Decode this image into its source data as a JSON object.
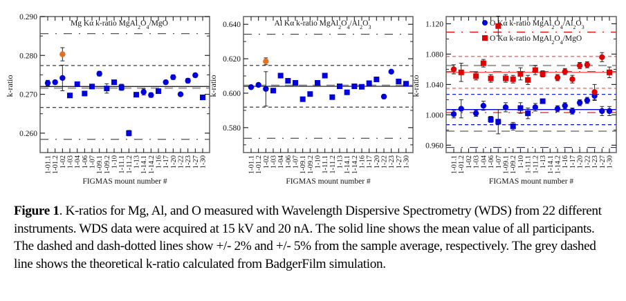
{
  "categories": [
    "1-01.1",
    "1-01.2",
    "1-02",
    "1-03",
    "1-04",
    "1-06",
    "1-07",
    "1-09.1",
    "1-09.2",
    "1-10",
    "1-11.1",
    "1-11.2",
    "1-13",
    "1-14.1",
    "1-14.2",
    "1-16",
    "1-17",
    "1-20",
    "1-22",
    "1-23",
    "1-27",
    "1-30"
  ],
  "colors": {
    "blue": "#0000dd",
    "orange": "#e8701a",
    "red": "#e00000",
    "lightred": "#ff7070",
    "grey": "#999999",
    "axis": "#555555"
  },
  "chart_data": [
    {
      "type": "scatter",
      "title": "Mg Kα k-ratio MgAl",
      "title_sub1": "2",
      "title_mid": "O",
      "title_sub2": "4",
      "title_end": "/MgO",
      "xlabel": "FIGMAS mount number #",
      "ylabel": "k-ratio",
      "ylim": [
        0.255,
        0.29
      ],
      "yticks": [
        "0.290",
        "0.280",
        "0.270",
        "0.260"
      ],
      "ytick_values": [
        0.29,
        0.28,
        0.27,
        0.26
      ],
      "reference_lines": {
        "mean": 0.272,
        "theoretical": 0.2716,
        "plus2": 0.2774,
        "minus2": 0.2666,
        "plus5": 0.2856,
        "minus5": 0.2584
      },
      "series": [
        {
          "name": "Mg Kα k-ratio MgAl2O4/MgO",
          "color": "blue",
          "values": [
            0.2729,
            0.2731,
            0.2742,
            0.2697,
            0.2726,
            0.2702,
            0.272,
            0.2753,
            0.2715,
            0.2731,
            0.2718,
            0.26,
            0.2699,
            0.2706,
            0.2698,
            0.2708,
            0.2731,
            0.2744,
            0.27,
            0.2735,
            0.2749,
            0.2692
          ],
          "errors": [
            0.0007,
            0.0004,
            0.0033,
            0.0005,
            0.0004,
            0.0006,
            0.0005,
            0.0006,
            0.0012,
            0.0003,
            0.0008,
            0.0007,
            0.0003,
            0.0008,
            0.0006,
            0.0003,
            0.0004,
            0.0006,
            0.0004,
            0.0006,
            0.0005,
            0.0006
          ],
          "markers": [
            "c",
            "c",
            "c",
            "s",
            "s",
            "s",
            "s",
            "c",
            "s",
            "s",
            "s",
            "s",
            "s",
            "c",
            "c",
            "s",
            "c",
            "c",
            "c",
            "c",
            "c",
            "s"
          ]
        },
        {
          "name": "outlier",
          "color": "orange",
          "values": [
            null,
            null,
            0.2803,
            null,
            null,
            null,
            null,
            null,
            null,
            null,
            null,
            null,
            null,
            null,
            null,
            null,
            null,
            null,
            null,
            null,
            null,
            null
          ],
          "errors": [
            null,
            null,
            0.0017,
            null,
            null,
            null,
            null,
            null,
            null,
            null,
            null,
            null,
            null,
            null,
            null,
            null,
            null,
            null,
            null,
            null,
            null,
            null
          ],
          "markers": [
            "c",
            "c",
            "c",
            "c",
            "c",
            "c",
            "c",
            "c",
            "c",
            "c",
            "c",
            "c",
            "c",
            "c",
            "c",
            "c",
            "c",
            "c",
            "c",
            "c",
            "c",
            "c"
          ]
        }
      ]
    },
    {
      "type": "scatter",
      "title": "Al Kα k-ratio MgAl",
      "title_sub1": "2",
      "title_mid": "O",
      "title_sub2": "4",
      "title_end": "/Al",
      "title_sub3": "2",
      "title_end2": "O",
      "title_sub4": "3",
      "xlabel": "FIGMAS mount number #",
      "ylabel": "k-ratio",
      "ylim": [
        0.5655,
        0.6445
      ],
      "yticks": [
        "0.640",
        "0.620",
        "0.600",
        "0.580"
      ],
      "ytick_values": [
        0.64,
        0.62,
        0.6,
        0.58
      ],
      "reference_lines": {
        "mean": 0.604,
        "theoretical": 0.6046,
        "plus2": 0.6161,
        "minus2": 0.5919,
        "plus5": 0.6342,
        "minus5": 0.5738
      },
      "series": [
        {
          "name": "Al Kα k-ratio MgAl2O4/Al2O3",
          "color": "blue",
          "values": [
            0.6035,
            0.6048,
            0.6025,
            0.6015,
            0.6102,
            0.6072,
            0.606,
            0.5965,
            0.5995,
            0.606,
            0.6102,
            0.5977,
            0.604,
            0.6005,
            0.604,
            0.6037,
            0.6058,
            0.608,
            0.598,
            0.6125,
            0.6068,
            0.6055
          ],
          "errors": [
            0.001,
            0.0008,
            0.01,
            0.001,
            0.0008,
            0.001,
            0.001,
            0.0007,
            0.0007,
            0.0006,
            0.0008,
            0.001,
            0.0006,
            0.0008,
            0.001,
            0.0006,
            0.001,
            0.0012,
            0.0012,
            0.0008,
            0.0012,
            0.001
          ],
          "markers": [
            "c",
            "c",
            "c",
            "s",
            "s",
            "s",
            "s",
            "s",
            "s",
            "s",
            "s",
            "s",
            "s",
            "s",
            "s",
            "s",
            "s",
            "s",
            "c",
            "c",
            "s",
            "s"
          ]
        },
        {
          "name": "outlier",
          "color": "orange",
          "values": [
            null,
            null,
            0.6185,
            null,
            null,
            null,
            null,
            null,
            null,
            null,
            null,
            null,
            null,
            null,
            null,
            null,
            null,
            null,
            null,
            null,
            null,
            null
          ],
          "errors": [
            null,
            null,
            0.002,
            null,
            null,
            null,
            null,
            null,
            null,
            null,
            null,
            null,
            null,
            null,
            null,
            null,
            null,
            null,
            null,
            null,
            null,
            null
          ],
          "markers": [
            "c",
            "c",
            "c",
            "c",
            "c",
            "c",
            "c",
            "c",
            "c",
            "c",
            "c",
            "c",
            "c",
            "c",
            "c",
            "c",
            "c",
            "c",
            "c",
            "c",
            "c",
            "c"
          ]
        }
      ]
    },
    {
      "type": "scatter",
      "xlabel": "FIGMAS mount number #",
      "ylabel": "k-ratio",
      "ylim": [
        0.9503,
        1.1295
      ],
      "yticks": [
        "1.120",
        "1.080",
        "1.040",
        "1.000",
        "0.960"
      ],
      "ytick_values": [
        1.12,
        1.08,
        1.04,
        1.0,
        0.96
      ],
      "legend": [
        {
          "text": "O Kα k-ratio MgAl",
          "sub1": "2",
          "mid": "O",
          "sub2": "4",
          "end": "/Al",
          "sub3": "2",
          "end2": "O",
          "sub4": "3",
          "marker": "c",
          "color": "blue"
        },
        {
          "text": "O Kα k-ratio MgAl",
          "sub1": "2",
          "mid": "O",
          "sub2": "4",
          "end": "/MgO",
          "marker": "s",
          "color": "red"
        }
      ],
      "legend_position": "top-right",
      "reference_lines_blue": {
        "mean": 1.007,
        "theoretical": 0.9785,
        "plus2": 1.027,
        "minus2": 0.987,
        "plus5": 1.057,
        "minus5": 0.957
      },
      "reference_lines_red": {
        "mean": 1.056,
        "theoretical": 1.065,
        "plus2": 1.077,
        "minus2": 1.035,
        "plus5": 1.109,
        "minus5": 1.003
      },
      "series": [
        {
          "name": "O Kα k-ratio MgAl2O4/Al2O3",
          "color": "blue",
          "values": [
            1.001,
            1.008,
            null,
            1.002,
            1.012,
            0.994,
            0.991,
            1.01,
            0.985,
            1.009,
            1.002,
            1.01,
            1.018,
            null,
            1.008,
            1.012,
            1.005,
            1.016,
            1.019,
            1.025,
            1.005,
            1.005
          ],
          "errors": [
            0.005,
            0.012,
            null,
            0.004,
            0.006,
            0.004,
            0.016,
            0.006,
            0.005,
            0.007,
            0.007,
            0.005,
            0.003,
            null,
            0.004,
            0.004,
            0.004,
            0.004,
            0.004,
            0.006,
            0.006,
            0.006
          ],
          "markers": [
            "c",
            "c",
            "c",
            "c",
            "c",
            "s",
            "s",
            "c",
            "s",
            "s",
            "s",
            "c",
            "s",
            "c",
            "c",
            "c",
            "c",
            "c",
            "c",
            "c",
            "c",
            "c"
          ]
        },
        {
          "name": "O Kα k-ratio MgAl2O4/MgO",
          "color": "red",
          "values": [
            1.06,
            1.056,
            null,
            1.051,
            1.068,
            1.048,
            1.117,
            1.048,
            1.047,
            1.054,
            1.046,
            1.059,
            1.054,
            null,
            1.049,
            1.057,
            1.047,
            1.065,
            1.066,
            1.03,
            1.076,
            1.056
          ],
          "errors": [
            0.006,
            0.012,
            null,
            0.005,
            0.005,
            0.005,
            0.013,
            0.005,
            0.005,
            0.008,
            0.006,
            0.006,
            0.004,
            null,
            0.004,
            0.004,
            0.005,
            0.004,
            0.004,
            0.01,
            0.006,
            0.007
          ],
          "markers": [
            "c",
            "s",
            "c",
            "s",
            "s",
            "s",
            "s",
            "s",
            "s",
            "s",
            "s",
            "s",
            "s",
            "c",
            "c",
            "c",
            "c",
            "c",
            "c",
            "c",
            "c",
            "s"
          ]
        }
      ]
    }
  ],
  "caption": {
    "label": "Figure 1",
    "text": ". K-ratios for Mg, Al, and O measured with Wavelength Dispersive Spectrometry (WDS) from 22 different instruments. WDS data were acquired at 15 kV and 20 nA. The solid line shows the mean value of all participants. The dashed and dash-dotted lines show +/- 2% and +/- 5% from the sample average, respectively. The grey dashed line shows the theoretical k-ratio calculated from BadgerFilm simulation."
  }
}
